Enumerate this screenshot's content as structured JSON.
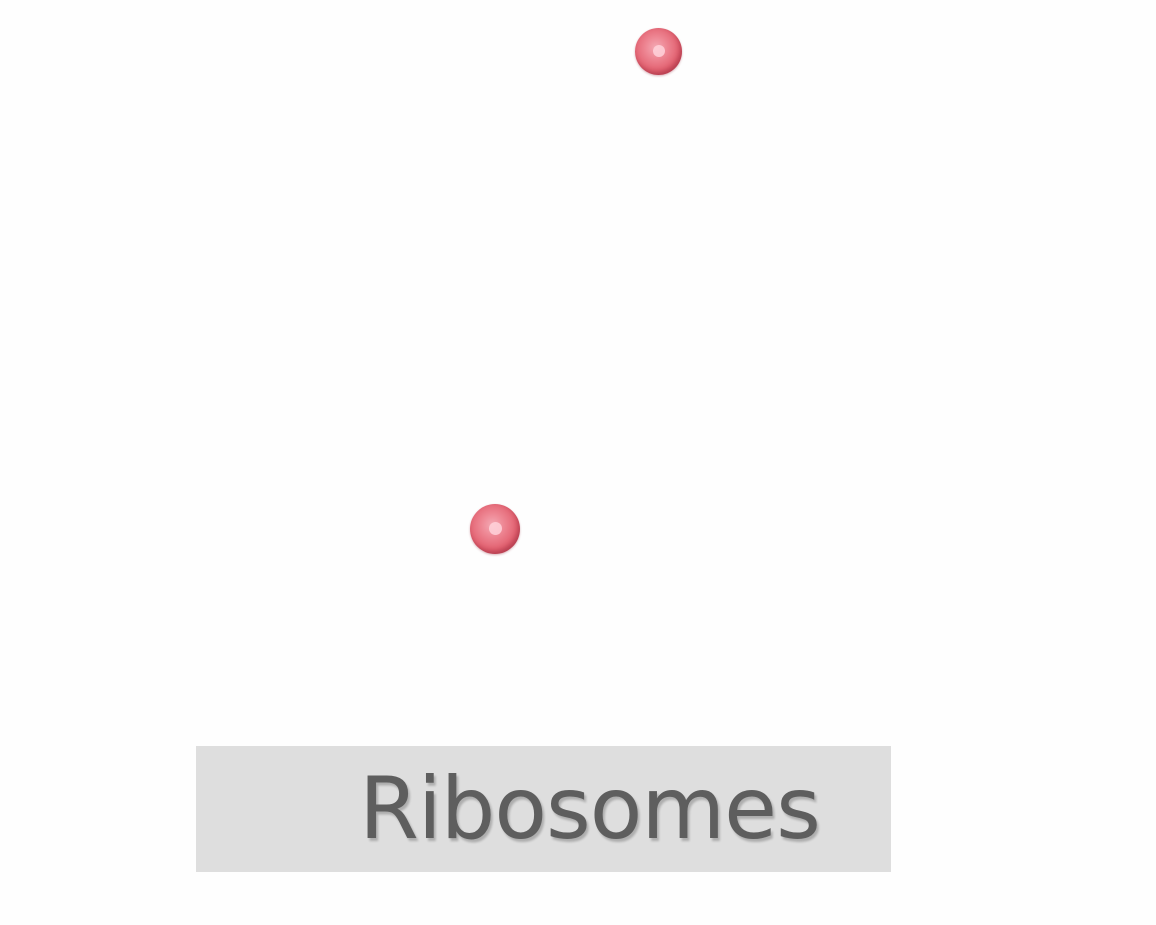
{
  "label": {
    "text": "Ribosomes"
  },
  "colors": {
    "ribosome": "#e2606f",
    "label_bar": "#dedede",
    "label_text": "#5e5e5e",
    "background": "#fefefe"
  }
}
